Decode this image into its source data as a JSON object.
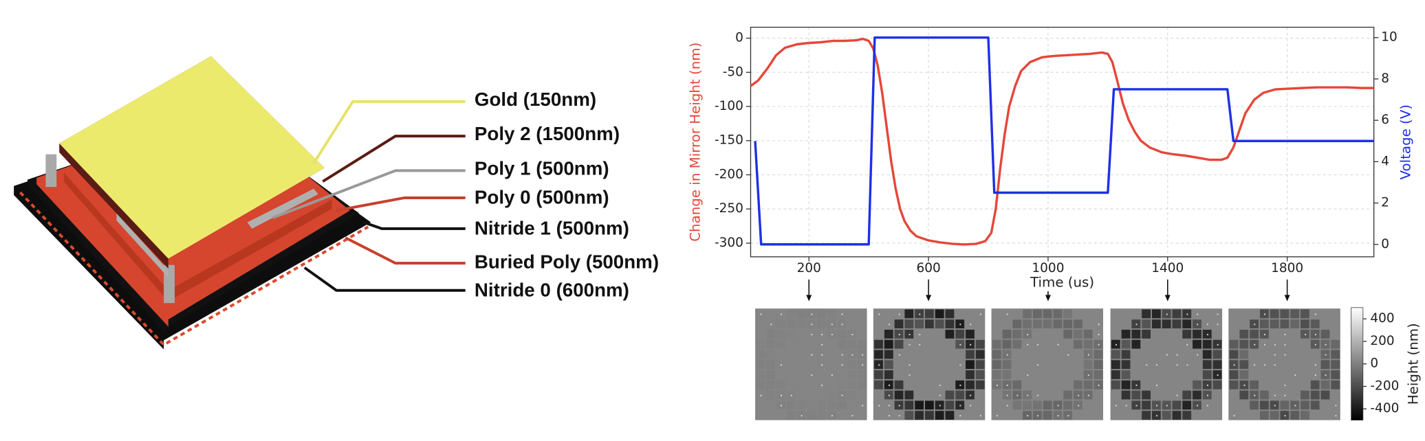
{
  "diagram": {
    "layers": [
      "Gold (150nm)",
      "Poly 2 (1500nm)",
      "Poly 1 (500nm)",
      "Poly 0 (500nm)",
      "Nitride 1 (500nm)",
      "Buried Poly (500nm)",
      "Nitride 0 (600nm)"
    ]
  },
  "chart_data": {
    "type": "line",
    "xlabel": "Time (us)",
    "ylabel": "Change in Mirror Height (nm)",
    "y2label": "Voltage (V)",
    "xlim": [
      5,
      2090
    ],
    "xticks": [
      200,
      600,
      1000,
      1400,
      1800
    ],
    "ylim": [
      -320,
      16
    ],
    "yticks": [
      0,
      -50,
      -100,
      -150,
      -200,
      -250,
      -300
    ],
    "y2lim": [
      -0.6,
      10.5
    ],
    "y2ticks": [
      0,
      2,
      4,
      6,
      8,
      10
    ],
    "grid": true,
    "series": [
      {
        "color": "#e5473a",
        "x": [
          5,
          30,
          60,
          90,
          120,
          160,
          200,
          240,
          280,
          320,
          360,
          380,
          400,
          415,
          430,
          445,
          460,
          475,
          490,
          505,
          520,
          540,
          560,
          600,
          640,
          680,
          720,
          760,
          790,
          810,
          825,
          840,
          855,
          870,
          890,
          910,
          940,
          980,
          1020,
          1060,
          1100,
          1140,
          1180,
          1200,
          1215,
          1230,
          1250,
          1270,
          1290,
          1310,
          1340,
          1380,
          1420,
          1460,
          1500,
          1540,
          1580,
          1600,
          1620,
          1640,
          1660,
          1690,
          1720,
          1760,
          1800,
          1850,
          1900,
          1950,
          2000,
          2050,
          2090
        ],
        "values": [
          -70,
          -62,
          -45,
          -25,
          -14,
          -9,
          -7,
          -6,
          -4,
          -4,
          -3,
          -1,
          -4,
          -15,
          -40,
          -80,
          -130,
          -180,
          -220,
          -250,
          -268,
          -282,
          -290,
          -296,
          -299,
          -301,
          -302,
          -301,
          -297,
          -285,
          -250,
          -190,
          -140,
          -100,
          -70,
          -48,
          -35,
          -28,
          -26,
          -25,
          -24,
          -23,
          -21,
          -23,
          -35,
          -60,
          -95,
          -120,
          -137,
          -150,
          -160,
          -167,
          -170,
          -172,
          -175,
          -178,
          -178,
          -175,
          -160,
          -135,
          -110,
          -90,
          -80,
          -75,
          -74,
          -73,
          -72,
          -72,
          -72,
          -73,
          -73
        ]
      },
      {
        "color": "#1f30e6",
        "axis": "y2",
        "x": [
          20,
          40,
          400,
          420,
          800,
          820,
          1200,
          1220,
          1600,
          1620,
          2090
        ],
        "values": [
          5,
          0,
          0,
          10,
          10,
          2.5,
          2.5,
          7.5,
          7.5,
          5,
          5
        ]
      }
    ],
    "colorbar": {
      "label": "Height (nm)",
      "lim": [
        -500,
        500
      ],
      "ticks": [
        400,
        200,
        0,
        -200,
        -400
      ],
      "colors": [
        "#000000",
        "#ffffff"
      ]
    }
  }
}
